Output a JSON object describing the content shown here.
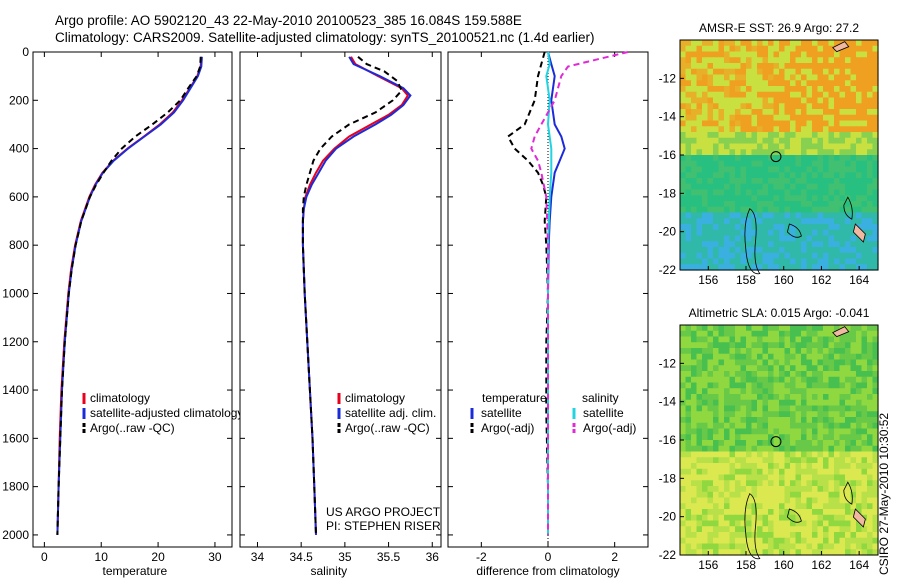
{
  "header": {
    "title_line1": "Argo profile: AO 5902120_43 22-May-2010 20100523_385 16.084S 159.588E",
    "title_line2": "Climatology: CARS2009. Satellite-adjusted climatology: synTS_20100521.nc (1.4d earlier)"
  },
  "side_label": "CSIRO 27-May-2010 10:30:52",
  "colors": {
    "climatology": "#e8001c",
    "satellite": "#1c2bd9",
    "argo": "#000000",
    "sal_satellite": "#22d4e0",
    "sal_argo": "#e02ad8"
  },
  "chart_data": [
    {
      "id": "temperature",
      "type": "line",
      "xlabel": "temperature",
      "ylabel": "",
      "xlim": [
        -2,
        33
      ],
      "ylim": [
        2050,
        0
      ],
      "xticks": [
        0,
        10,
        20,
        30
      ],
      "yticks": [
        0,
        200,
        400,
        600,
        800,
        1000,
        1200,
        1400,
        1600,
        1800,
        2000
      ],
      "legend": [
        "climatology",
        "satellite-adjusted climatology",
        "Argo(..raw -QC)"
      ],
      "legend_position": "lower-center",
      "series": [
        {
          "name": "climatology",
          "color": "#e8001c",
          "dash": "",
          "pressure": [
            20,
            60,
            100,
            150,
            200,
            250,
            300,
            350,
            400,
            450,
            500,
            550,
            600,
            700,
            800,
            900,
            1000,
            1200,
            1400,
            1600,
            1800,
            2000
          ],
          "values": [
            27.6,
            27.5,
            26.9,
            25.6,
            24.2,
            22.6,
            20.3,
            17.5,
            14.6,
            12.1,
            10.2,
            8.9,
            7.9,
            6.4,
            5.4,
            4.7,
            4.2,
            3.5,
            3.0,
            2.7,
            2.5,
            2.3
          ]
        },
        {
          "name": "satellite-adjusted climatology",
          "color": "#1c2bd9",
          "dash": "",
          "pressure": [
            20,
            60,
            100,
            150,
            200,
            250,
            300,
            350,
            400,
            450,
            500,
            550,
            600,
            700,
            800,
            900,
            1000,
            1200,
            1400,
            1600,
            1800,
            2000
          ],
          "values": [
            27.7,
            27.6,
            27.0,
            25.7,
            24.4,
            22.8,
            20.5,
            17.6,
            14.7,
            12.2,
            10.3,
            9.0,
            8.0,
            6.5,
            5.5,
            4.8,
            4.3,
            3.6,
            3.1,
            2.8,
            2.5,
            2.3
          ]
        },
        {
          "name": "Argo(..raw -QC)",
          "color": "#000000",
          "dash": "6,4",
          "pressure": [
            20,
            60,
            100,
            150,
            200,
            250,
            300,
            350,
            400,
            450,
            500,
            550,
            600,
            700,
            800,
            900,
            1000,
            1200,
            1400,
            1600,
            1800,
            2000
          ],
          "values": [
            27.5,
            27.4,
            26.8,
            25.3,
            23.9,
            21.7,
            19.0,
            16.0,
            13.6,
            11.8,
            10.4,
            9.1,
            8.0,
            6.5,
            5.5,
            4.8,
            4.3,
            3.6,
            3.1,
            2.8,
            2.5,
            2.3
          ]
        }
      ]
    },
    {
      "id": "salinity",
      "type": "line",
      "xlabel": "salinity",
      "ylabel": "",
      "xlim": [
        33.8,
        36.1
      ],
      "ylim": [
        2050,
        0
      ],
      "xticks": [
        34,
        34.5,
        35,
        35.5,
        36
      ],
      "yticks": [
        0,
        200,
        400,
        600,
        800,
        1000,
        1200,
        1400,
        1600,
        1800,
        2000
      ],
      "legend": [
        "climatology",
        "satellite adj. clim.",
        "Argo(..raw -QC)"
      ],
      "legend_position": "lower-right",
      "annotation": [
        "US ARGO PROJECT",
        "PI: STEPHEN RISER"
      ],
      "series": [
        {
          "name": "climatology",
          "color": "#e8001c",
          "dash": "",
          "pressure": [
            20,
            50,
            100,
            150,
            180,
            220,
            260,
            300,
            350,
            400,
            450,
            500,
            550,
            600,
            650,
            700,
            800,
            1000,
            1200,
            1400,
            1600,
            1800,
            2000
          ],
          "values": [
            35.07,
            35.12,
            35.38,
            35.65,
            35.72,
            35.65,
            35.5,
            35.3,
            35.05,
            34.88,
            34.75,
            34.67,
            34.6,
            34.55,
            34.53,
            34.52,
            34.52,
            34.54,
            34.57,
            34.6,
            34.63,
            34.65,
            34.67
          ]
        },
        {
          "name": "satellite adj. clim.",
          "color": "#1c2bd9",
          "dash": "",
          "pressure": [
            20,
            50,
            100,
            150,
            180,
            220,
            260,
            300,
            350,
            400,
            450,
            500,
            550,
            600,
            650,
            700,
            800,
            1000,
            1200,
            1400,
            1600,
            1800,
            2000
          ],
          "values": [
            35.05,
            35.1,
            35.4,
            35.67,
            35.75,
            35.67,
            35.53,
            35.35,
            35.1,
            34.9,
            34.78,
            34.7,
            34.62,
            34.56,
            34.53,
            34.52,
            34.52,
            34.54,
            34.57,
            34.6,
            34.63,
            34.65,
            34.67
          ]
        },
        {
          "name": "Argo(..raw -QC)",
          "color": "#000000",
          "dash": "6,4",
          "pressure": [
            20,
            50,
            80,
            120,
            160,
            200,
            250,
            300,
            350,
            400,
            450,
            500,
            550,
            600,
            650,
            700,
            800,
            1000,
            1200,
            1400,
            1600,
            1800,
            2000
          ],
          "values": [
            35.15,
            35.25,
            35.45,
            35.6,
            35.65,
            35.55,
            35.35,
            35.05,
            34.85,
            34.72,
            34.64,
            34.6,
            34.56,
            34.53,
            34.52,
            34.52,
            34.52,
            34.54,
            34.57,
            34.6,
            34.63,
            34.65,
            34.67
          ]
        }
      ]
    },
    {
      "id": "difference",
      "type": "line",
      "xlabel": "difference from climatology",
      "ylabel": "",
      "xlim": [
        -3,
        3
      ],
      "ylim": [
        2050,
        0
      ],
      "xticks": [
        -2,
        0,
        2
      ],
      "yticks": [
        0,
        200,
        400,
        600,
        800,
        1000,
        1200,
        1400,
        1600,
        1800,
        2000
      ],
      "legend_groups": [
        "temperature",
        "salinity"
      ],
      "legend": [
        "satellite",
        "Argo(-adj)",
        "satellite",
        "Argo(-adj)"
      ],
      "legend_position": "lower-center",
      "series": [
        {
          "name": "temperature satellite",
          "color": "#1c2bd9",
          "dash": "",
          "pressure": [
            0,
            50,
            100,
            200,
            300,
            350,
            400,
            450,
            500,
            600,
            700,
            800,
            1000,
            1500,
            2000
          ],
          "values": [
            0.0,
            0.1,
            0.2,
            0.1,
            0.2,
            0.4,
            0.5,
            0.35,
            0.2,
            0.1,
            0.05,
            0.02,
            0.0,
            0.0,
            0.0
          ]
        },
        {
          "name": "temperature Argo(-adj)",
          "color": "#000000",
          "dash": "6,4",
          "pressure": [
            0,
            50,
            100,
            200,
            300,
            350,
            400,
            450,
            500,
            550,
            600,
            700,
            800,
            1000,
            1200,
            1500,
            1800,
            2000
          ],
          "values": [
            -0.1,
            -0.2,
            -0.3,
            -0.4,
            -0.7,
            -1.2,
            -1.0,
            -0.6,
            -0.3,
            -0.15,
            -0.05,
            -0.1,
            -0.05,
            0.0,
            -0.05,
            -0.05,
            0.0,
            0.0
          ]
        },
        {
          "name": "salinity satellite",
          "color": "#22d4e0",
          "dash": "",
          "pressure": [
            0,
            50,
            100,
            200,
            300,
            400,
            500,
            600,
            800,
            1000,
            1500,
            2000
          ],
          "values": [
            0.0,
            0.05,
            -0.05,
            0.05,
            0.0,
            0.1,
            0.1,
            0.05,
            0.0,
            0.0,
            0.0,
            0.0
          ]
        },
        {
          "name": "salinity Argo(-adj)",
          "color": "#e02ad8",
          "dash": "6,4",
          "pressure": [
            0,
            30,
            60,
            100,
            150,
            200,
            250,
            300,
            350,
            400,
            450,
            500,
            600,
            800,
            1000,
            2000
          ],
          "values": [
            2.4,
            1.5,
            0.6,
            0.4,
            0.3,
            0.2,
            0.0,
            -0.2,
            -0.4,
            -0.5,
            -0.3,
            -0.2,
            -0.05,
            0.0,
            0.0,
            0.0
          ]
        }
      ]
    },
    {
      "id": "sst_map",
      "type": "heatmap",
      "title": "AMSR-E SST: 26.9 Argo: 27.2",
      "xlim": [
        154.5,
        165
      ],
      "ylim": [
        -22,
        -10
      ],
      "xticks": [
        156,
        158,
        160,
        162,
        164
      ],
      "yticks": [
        -12,
        -14,
        -16,
        -18,
        -20,
        -22
      ],
      "marker": {
        "lon": 159.588,
        "lat": -16.084
      },
      "palette": {
        "warm": "#f0a020",
        "mid": "#c8e040",
        "cool": "#28c080",
        "cold": "#3ab0e0"
      }
    },
    {
      "id": "sla_map",
      "type": "heatmap",
      "title": "Altimetric SLA: 0.015 Argo: -0.041",
      "xlim": [
        154.5,
        165
      ],
      "ylim": [
        -22,
        -10
      ],
      "xticks": [
        156,
        158,
        160,
        162,
        164
      ],
      "yticks": [
        -12,
        -14,
        -16,
        -18,
        -20,
        -22
      ],
      "marker": {
        "lon": 159.588,
        "lat": -16.084
      },
      "palette": {
        "low": "#48c050",
        "mid": "#90d840",
        "high": "#dce850"
      }
    }
  ]
}
